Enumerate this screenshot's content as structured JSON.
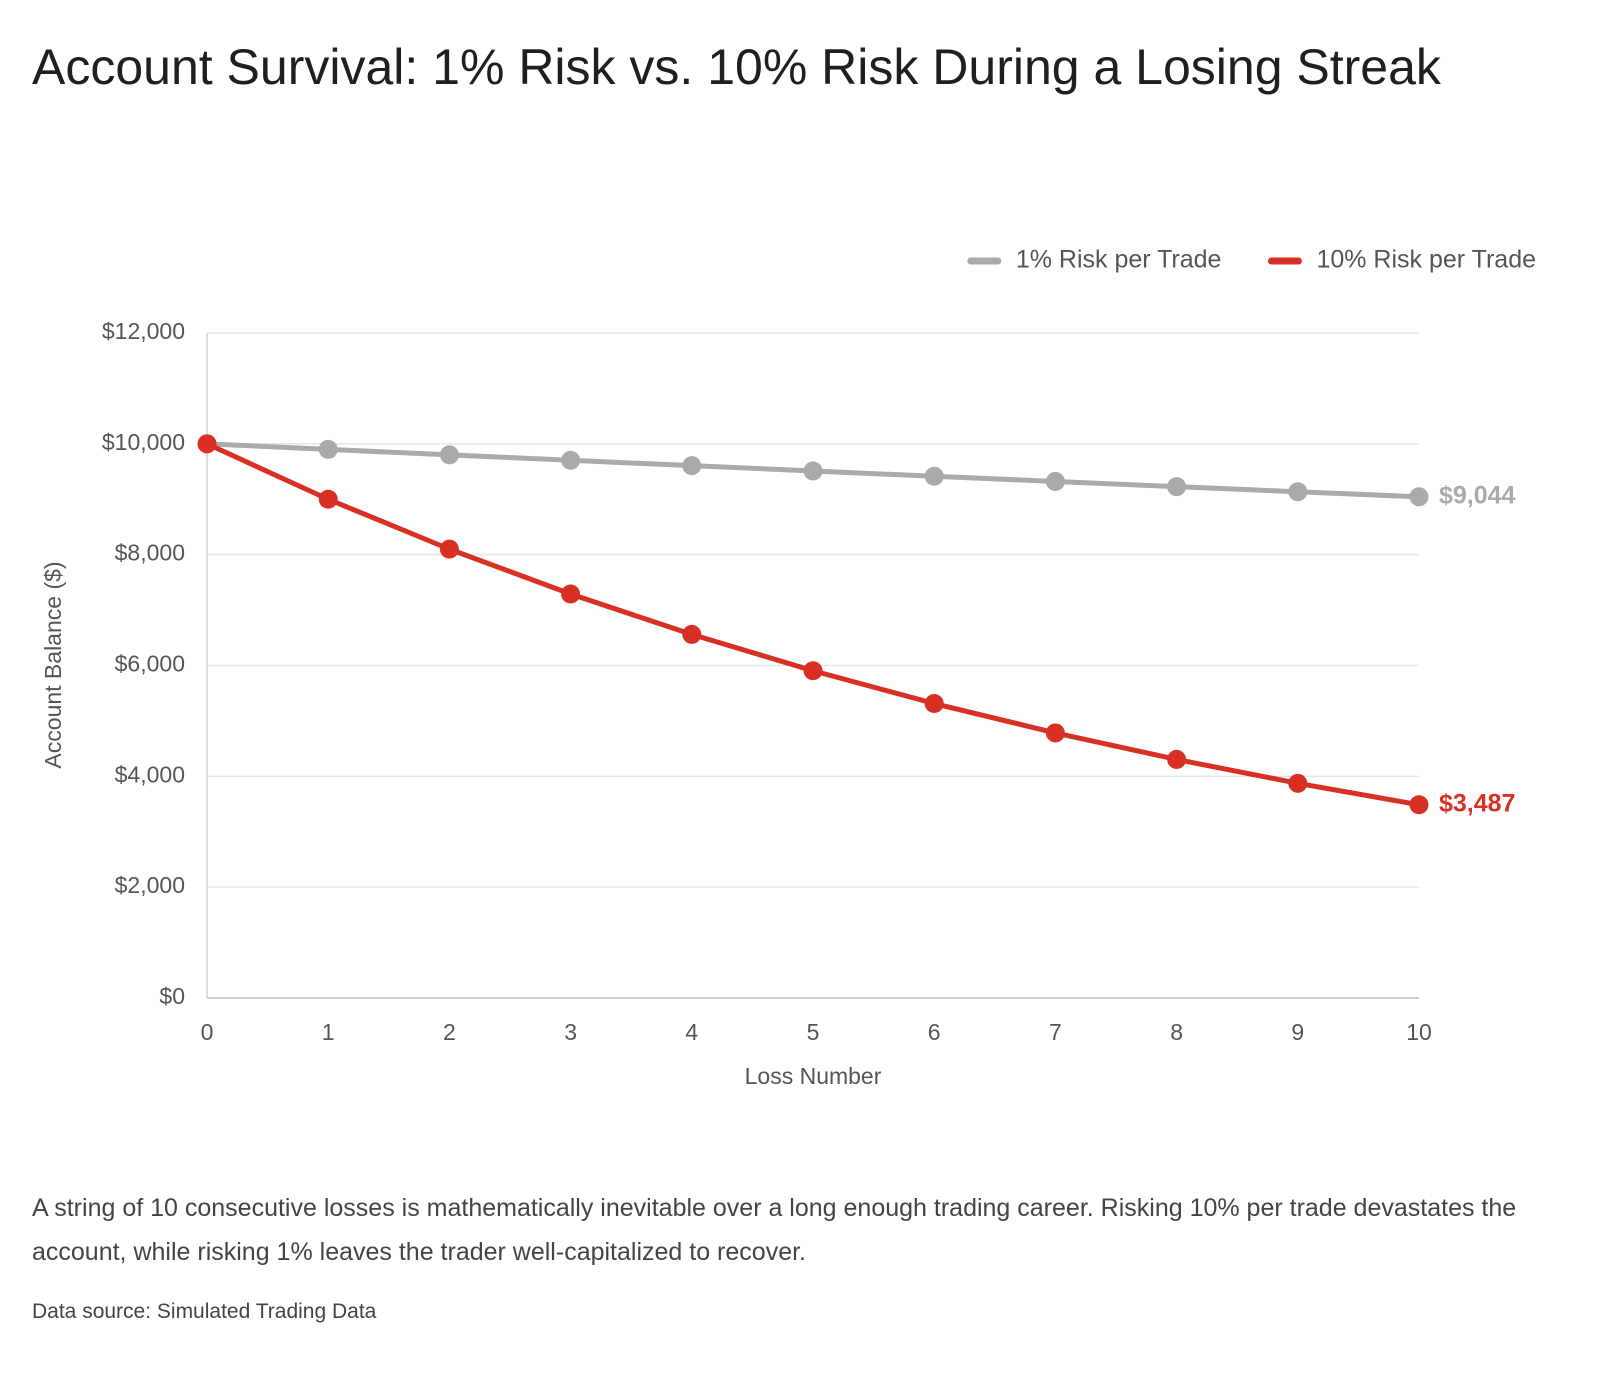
{
  "chart_data": {
    "type": "line",
    "title": "Account Survival: 1% Risk vs. 10% Risk During a Losing Streak",
    "x_label": "Loss Number",
    "y_label": "Account Balance ($)",
    "x": [
      0,
      1,
      2,
      3,
      4,
      5,
      6,
      7,
      8,
      9,
      10
    ],
    "xlim": [
      0,
      10
    ],
    "xticks": [
      0,
      1,
      2,
      3,
      4,
      5,
      6,
      7,
      8,
      9,
      10
    ],
    "ylim": [
      0,
      12000
    ],
    "yticks": [
      {
        "value": 0,
        "label": "$0"
      },
      {
        "value": 2000,
        "label": "$2,000"
      },
      {
        "value": 4000,
        "label": "$4,000"
      },
      {
        "value": 6000,
        "label": "$6,000"
      },
      {
        "value": 8000,
        "label": "$8,000"
      },
      {
        "value": 10000,
        "label": "$10,000"
      },
      {
        "value": 12000,
        "label": "$12,000"
      }
    ],
    "grid": true,
    "legend": "top-right",
    "series": [
      {
        "name": "1% Risk per Trade",
        "color": "#aaaaaa",
        "values": [
          10000,
          9900,
          9801,
          9703,
          9606,
          9510,
          9415,
          9321,
          9227,
          9135,
          9044
        ],
        "value_labels": [
          null,
          null,
          null,
          null,
          null,
          null,
          null,
          null,
          null,
          null,
          "$9,044"
        ]
      },
      {
        "name": "10% Risk per Trade",
        "color": "#d93025",
        "values": [
          10000,
          9000,
          8100,
          7290,
          6561,
          5905,
          5314,
          4783,
          4305,
          3874,
          3487
        ],
        "value_labels": [
          null,
          null,
          null,
          null,
          null,
          null,
          null,
          null,
          null,
          null,
          "$3,487"
        ]
      }
    ],
    "caption": "A string of 10 consecutive losses is mathematically inevitable over a long enough trading career. Risking 10% per trade devastates the account, while risking 1% leaves the trader well-capitalized to recover.",
    "source": "Data source: Simulated Trading Data"
  }
}
